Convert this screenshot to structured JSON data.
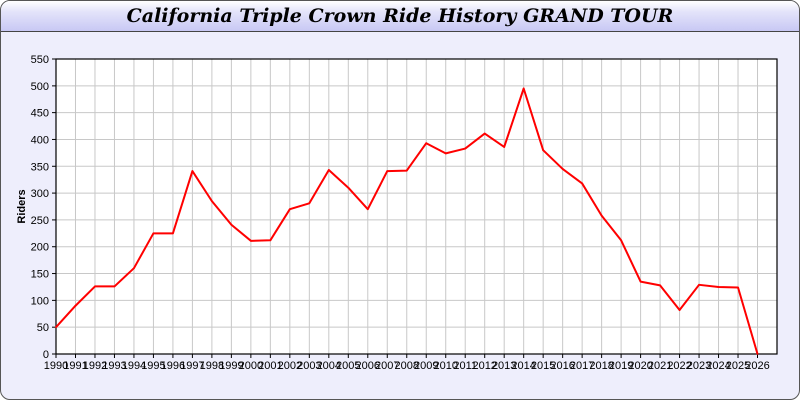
{
  "window": {
    "title": "California Triple Crown Ride History GRAND TOUR"
  },
  "chart_data": {
    "type": "line",
    "title": "California Triple Crown Ride History GRAND TOUR",
    "xlabel": "",
    "ylabel": "Riders",
    "xlim": [
      1990,
      2027
    ],
    "ylim": [
      0,
      550
    ],
    "grid": true,
    "x_ticks": [
      "1990",
      "1991",
      "1992",
      "1993",
      "1994",
      "1995",
      "1996",
      "1997",
      "1998",
      "1999",
      "2000",
      "2001",
      "2002",
      "2003",
      "2004",
      "2005",
      "2006",
      "2007",
      "2008",
      "2009",
      "2010",
      "2011",
      "2012",
      "2013",
      "2014",
      "2015",
      "2016",
      "2017",
      "2018",
      "2019",
      "2020",
      "2021",
      "2022",
      "2023",
      "2024",
      "2025",
      "2026"
    ],
    "y_ticks": [
      "0",
      "50",
      "100",
      "150",
      "200",
      "250",
      "300",
      "350",
      "400",
      "450",
      "500",
      "550"
    ],
    "series": [
      {
        "color": "#ff0000",
        "x": [
          1990,
          1991,
          1992,
          1993,
          1994,
          1995,
          1996,
          1997,
          1998,
          1999,
          2000,
          2001,
          2002,
          2003,
          2004,
          2005,
          2006,
          2007,
          2008,
          2009,
          2010,
          2011,
          2012,
          2013,
          2014,
          2015,
          2016,
          2017,
          2018,
          2019,
          2020,
          2021,
          2022,
          2023,
          2024,
          2025,
          2026
        ],
        "values": [
          50,
          90,
          126,
          126,
          160,
          225,
          225,
          341,
          285,
          241,
          211,
          212,
          270,
          281,
          343,
          310,
          270,
          341,
          342,
          393,
          374,
          383,
          411,
          386,
          495,
          380,
          345,
          318,
          258,
          212,
          135,
          128,
          82,
          129,
          125,
          124,
          0
        ]
      }
    ]
  }
}
